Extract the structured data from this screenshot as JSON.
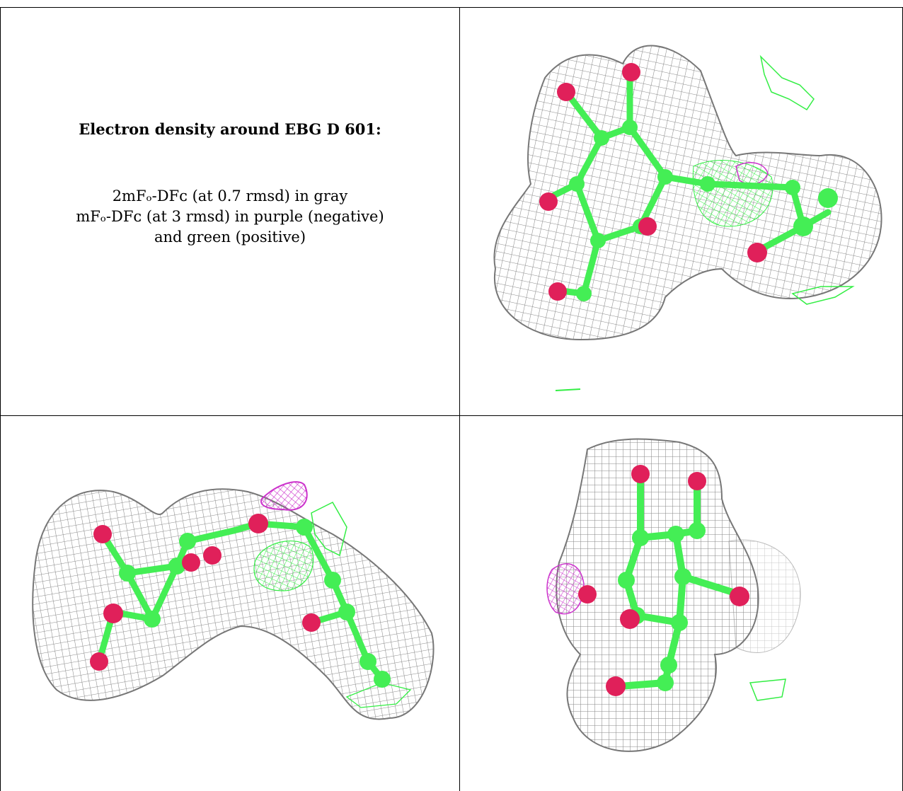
{
  "caption": {
    "title": "Electron density around EBG D 601:",
    "line1": "2mFₒ-DFᴄ (at 0.7 rmsd) in gray",
    "line2": "mFₒ-DFᴄ (at 3 rmsd) in purple (negative)",
    "line3": "and green (positive)"
  },
  "colors": {
    "mesh_2fofc": "#8a8a8a",
    "diff_positive": "#33ee44",
    "diff_negative": "#cc33cc",
    "carbon_atom": "#44ee55",
    "oxygen_atom": "#e0205a"
  },
  "panels": [
    {
      "view": "top-right"
    },
    {
      "view": "bottom-left"
    },
    {
      "view": "bottom-right"
    }
  ]
}
